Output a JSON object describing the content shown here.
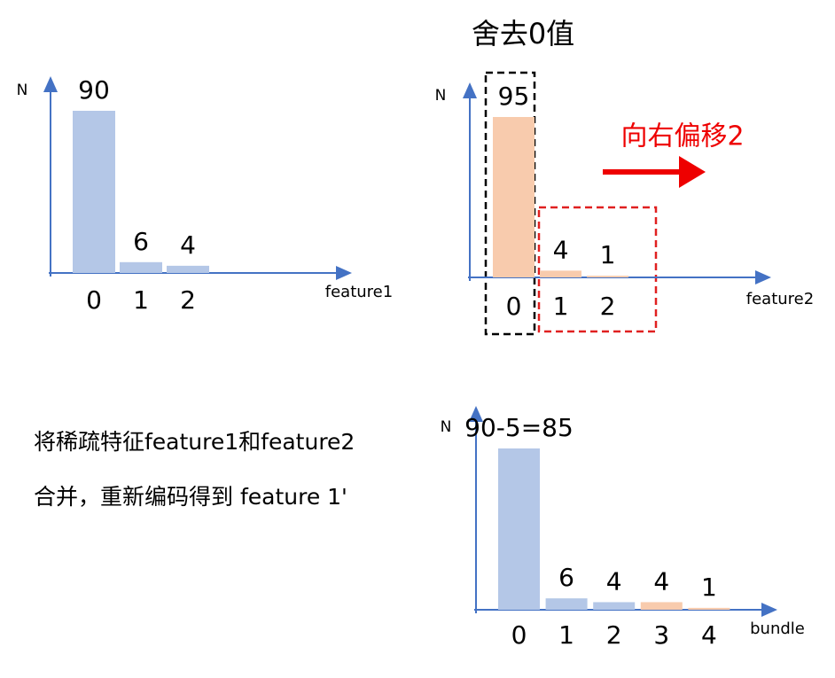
{
  "chart_data": [
    {
      "type": "bar",
      "y_label": "N",
      "x_label": "feature1",
      "categories": [
        "0",
        "1",
        "2"
      ],
      "values": [
        90,
        6,
        4
      ],
      "color": "#b4c7e7"
    },
    {
      "type": "bar",
      "title": "舍去0值",
      "annotation": "向右偏移2",
      "y_label": "N",
      "x_label": "feature2",
      "categories": [
        "0",
        "1",
        "2"
      ],
      "values": [
        95,
        4,
        1
      ],
      "color": "#f8cbad"
    },
    {
      "type": "bar",
      "y_label": "N",
      "x_label": "bundle",
      "categories": [
        "0",
        "1",
        "2",
        "3",
        "4"
      ],
      "values": [
        85,
        6,
        4,
        4,
        1
      ],
      "value_labels": [
        "90-5=85",
        "6",
        "4",
        "4",
        "1"
      ],
      "colors": [
        "#b4c7e7",
        "#b4c7e7",
        "#b4c7e7",
        "#f8cbad",
        "#f8cbad"
      ]
    }
  ],
  "text": {
    "lines": [
      "将稀疏特征feature1和feature2",
      "合并，重新编码得到 feature 1'"
    ]
  }
}
